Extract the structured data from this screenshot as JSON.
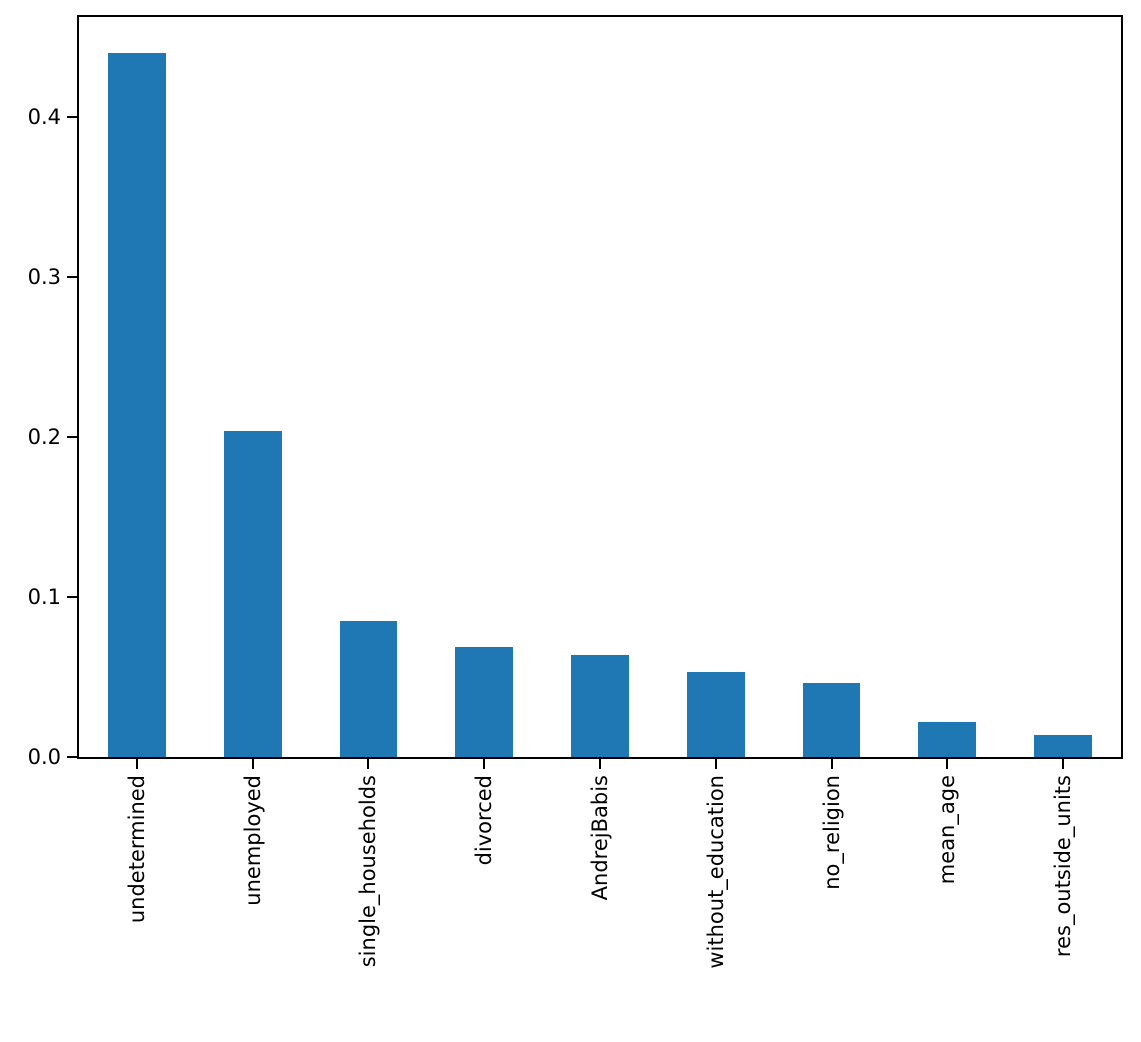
{
  "chart_data": {
    "type": "bar",
    "title": "",
    "xlabel": "",
    "ylabel": "",
    "categories": [
      "undetermined",
      "unemployed",
      "single_households",
      "divorced",
      "AndrejBabis",
      "without_education",
      "no_religion",
      "mean_age",
      "res_outside_units"
    ],
    "values": [
      0.44,
      0.204,
      0.085,
      0.069,
      0.064,
      0.053,
      0.046,
      0.022,
      0.014
    ],
    "ylim": [
      0,
      0.4625
    ],
    "yticks": [
      0.0,
      0.1,
      0.2,
      0.3,
      0.4
    ],
    "ytick_labels": [
      "0.0",
      "0.1",
      "0.2",
      "0.3",
      "0.4"
    ],
    "x_tick_rotation": 90,
    "bar_width_fraction": 0.5,
    "grid": false,
    "legend": false,
    "bar_color": "#1f77b4",
    "spine_color": "#000000",
    "background_color": "#ffffff"
  }
}
